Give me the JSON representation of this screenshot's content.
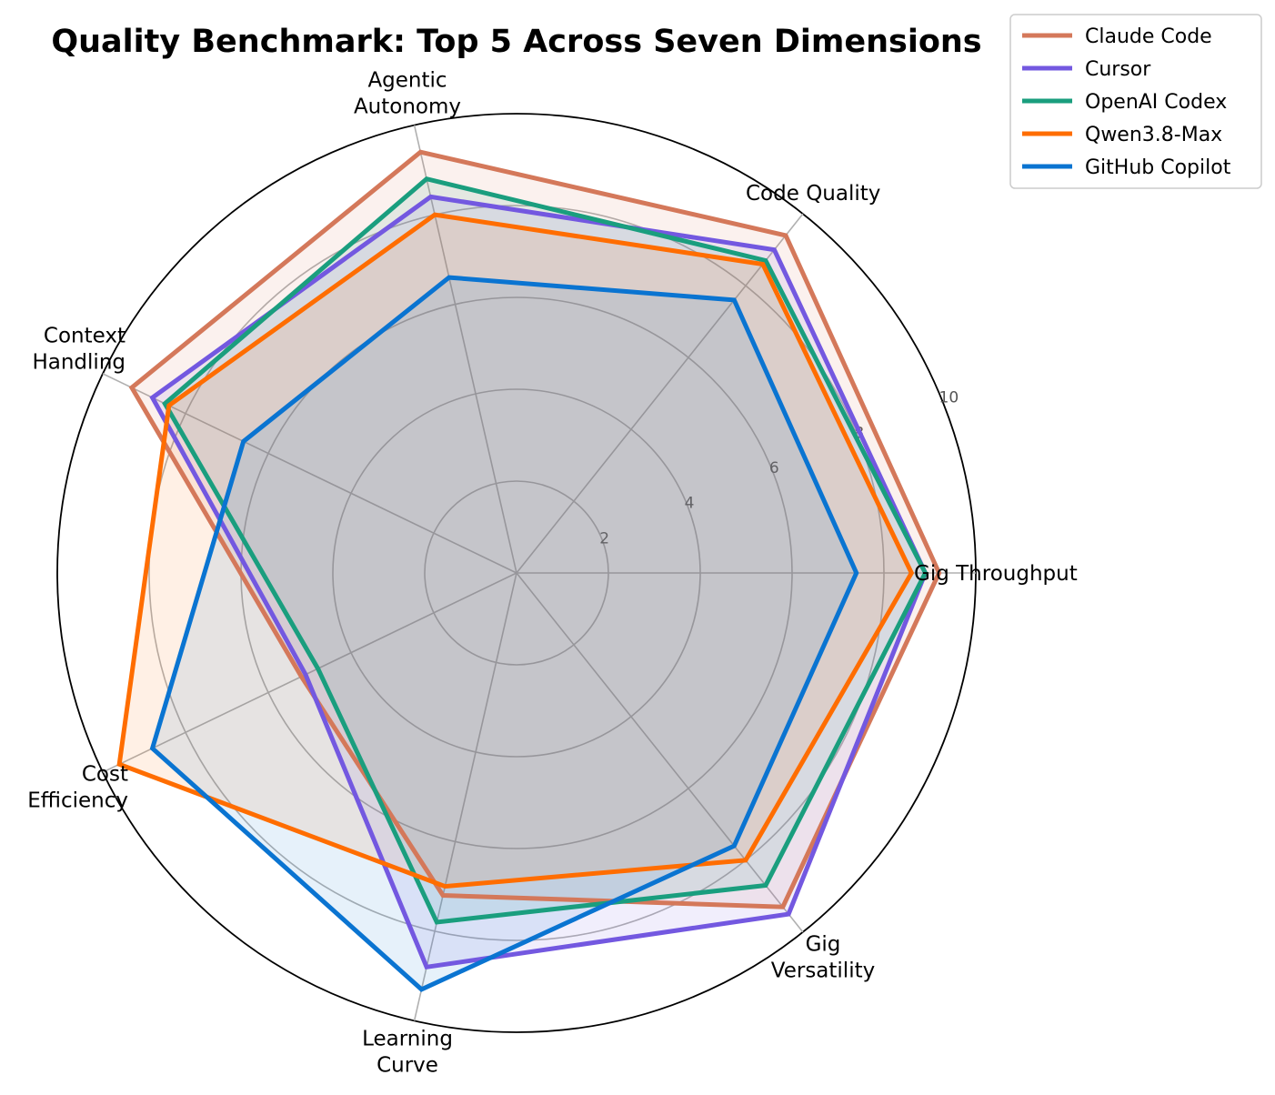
{
  "chart_data": {
    "type": "radar",
    "title": "Quality Benchmark: Top 5 Across Seven Dimensions",
    "axes": [
      [
        "Gig Throughput"
      ],
      [
        "Code Quality"
      ],
      [
        "Agentic",
        "Autonomy"
      ],
      [
        "Context",
        "Handling"
      ],
      [
        "Cost",
        "Efficiency"
      ],
      [
        "Learning",
        "Curve"
      ],
      [
        "Gig",
        "Versatility"
      ]
    ],
    "categories": [
      "Gig Throughput",
      "Code Quality",
      "Agentic Autonomy",
      "Context Handling",
      "Cost Efficiency",
      "Learning Curve",
      "Gig Versatility"
    ],
    "rlim": [
      0,
      10
    ],
    "rticks": [
      2,
      4,
      6,
      8,
      10
    ],
    "grid": true,
    "legend_position": "top-right",
    "series": [
      {
        "name": "Claude Code",
        "color": "#d4785a",
        "values": [
          9.2,
          9.4,
          9.4,
          9.3,
          5.2,
          7.2,
          9.3
        ]
      },
      {
        "name": "Cursor",
        "color": "#7358e0",
        "values": [
          8.9,
          9.0,
          8.4,
          8.8,
          5.1,
          8.8,
          9.5
        ]
      },
      {
        "name": "OpenAI Codex",
        "color": "#1a9e7e",
        "values": [
          8.9,
          8.7,
          8.8,
          8.5,
          4.8,
          7.8,
          8.7
        ]
      },
      {
        "name": "Qwen3.8-Max",
        "color": "#ff6d00",
        "values": [
          8.6,
          8.6,
          8.0,
          8.4,
          9.6,
          7.0,
          8.0
        ]
      },
      {
        "name": "GitHub Copilot",
        "color": "#0a74d1",
        "values": [
          7.4,
          7.6,
          6.6,
          6.6,
          8.8,
          9.3,
          7.6
        ]
      }
    ]
  }
}
